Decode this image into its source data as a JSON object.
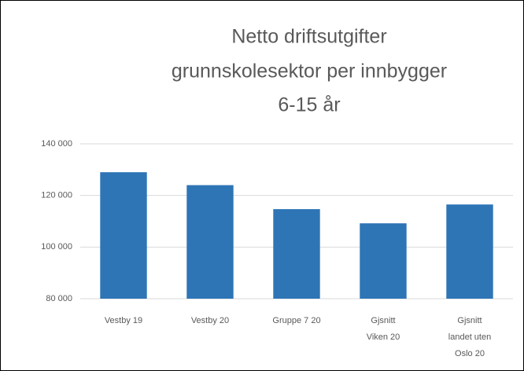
{
  "chart_data": {
    "type": "bar",
    "title": [
      "Netto driftsutgifter",
      "grunnskolesektor  per innbygger",
      "6-15 år"
    ],
    "categories": [
      "Vestby 19",
      "Vestby 20",
      "Gruppe 7 20",
      "Gjsnitt Viken 20",
      "Gjsnitt landet uten Oslo 20"
    ],
    "values": [
      129000,
      124000,
      114700,
      109200,
      116500
    ],
    "color": "#2e75b6",
    "ylim": [
      80000,
      140000
    ],
    "yticks": [
      {
        "value": 80000,
        "label": "80 000"
      },
      {
        "value": 100000,
        "label": "100 000"
      },
      {
        "value": 120000,
        "label": "120 000"
      },
      {
        "value": 140000,
        "label": "140 000"
      }
    ],
    "grid": true
  }
}
